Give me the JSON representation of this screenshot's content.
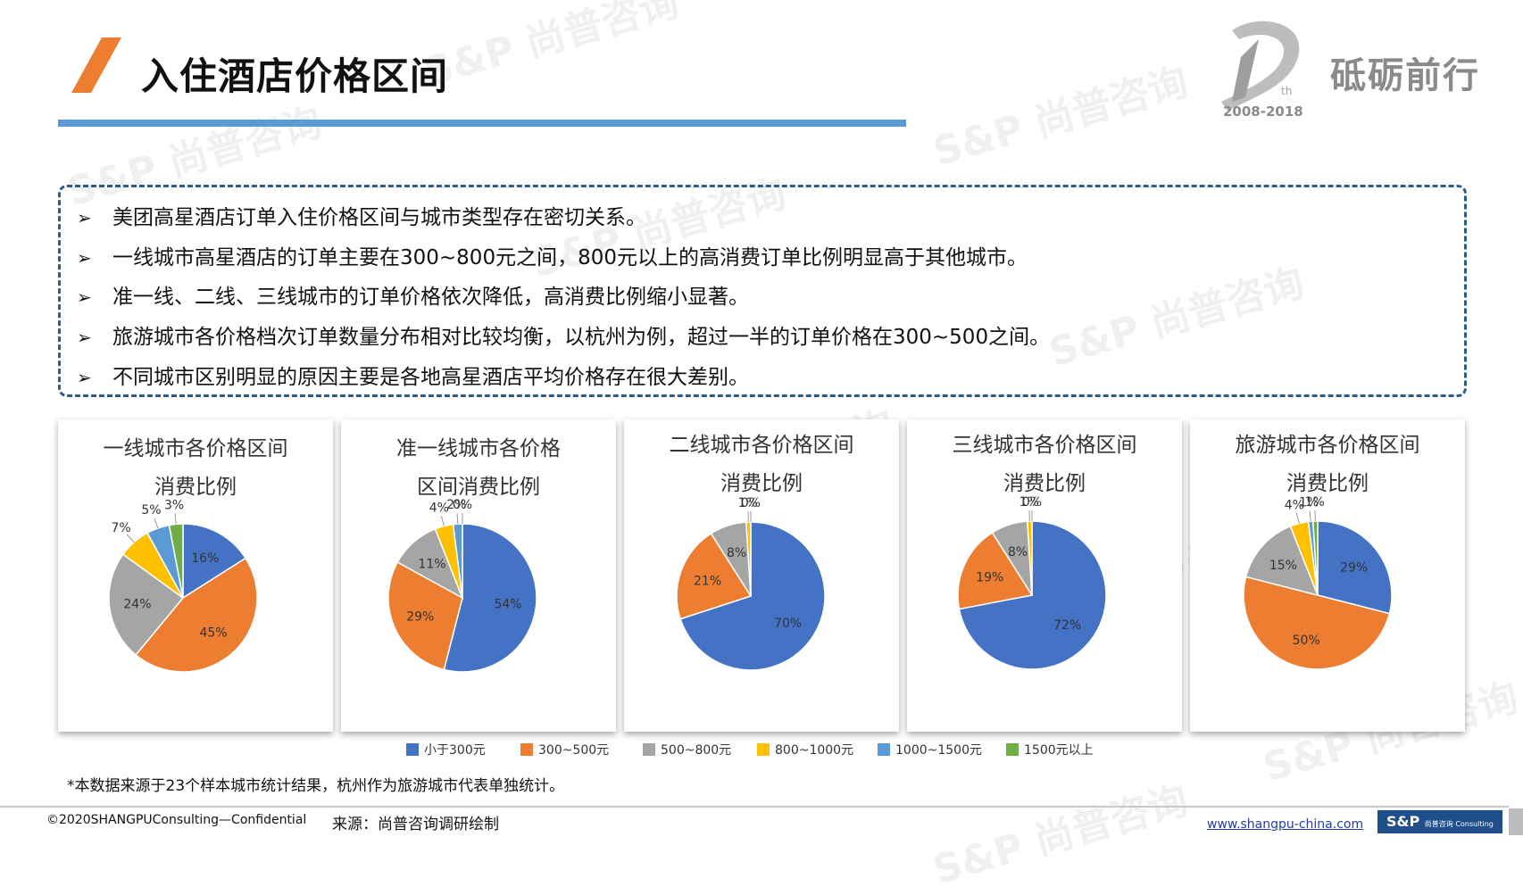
{
  "page": {
    "title": "入住酒店价格区间",
    "brand_text": "砥砺前行",
    "logo_years": "2008-2018",
    "logo_sup": "th"
  },
  "summary": {
    "bullets": [
      "美团高星酒店订单入住价格区间与城市类型存在密切关系。",
      "一线城市高星酒店的订单主要在300~800元之间，800元以上的高消费订单比例明显高于其他城市。",
      "准一线、二线、三线城市的订单价格依次降低，高消费比例缩小显著。",
      "旅游城市各价格档次订单数量分布相对比较均衡，以杭州为例，超过一半的订单价格在300~500之间。",
      "不同城市区别明显的原因主要是各地高星酒店平均价格存在很大差别。"
    ]
  },
  "chart_data": [
    {
      "type": "pie",
      "title_line1": "一线城市各价格区间",
      "title_line2": "消费比例",
      "categories": [
        "小于300元",
        "300~500元",
        "500~800元",
        "800~1000元",
        "1000~1500元",
        "1500元以上"
      ],
      "values": [
        16,
        45,
        24,
        7,
        5,
        3
      ],
      "labels": [
        "16%",
        "45%",
        "24%",
        "7%",
        "5%",
        "3%"
      ]
    },
    {
      "type": "pie",
      "title_line1": "准一线城市各价格",
      "title_line2": "区间消费比例",
      "categories": [
        "小于300元",
        "300~500元",
        "500~800元",
        "800~1000元",
        "1000~1500元",
        "1500元以上"
      ],
      "values": [
        54,
        29,
        11,
        4,
        2,
        0
      ],
      "labels": [
        "54%",
        "29%",
        "11%",
        "4%",
        "2%",
        "0%"
      ]
    },
    {
      "type": "pie",
      "title_line1": "二线城市各价格区间",
      "title_line2": "消费比例",
      "categories": [
        "小于300元",
        "300~500元",
        "500~800元",
        "800~1000元",
        "1000~1500元",
        "1500元以上"
      ],
      "values": [
        70,
        21,
        8,
        1,
        0,
        0
      ],
      "labels": [
        "70%",
        "21%",
        "8%",
        "1%",
        "0%",
        ""
      ]
    },
    {
      "type": "pie",
      "title_line1": "三线城市各价格区间",
      "title_line2": "消费比例",
      "categories": [
        "小于300元",
        "300~500元",
        "500~800元",
        "800~1000元",
        "1000~1500元",
        "1500元以上"
      ],
      "values": [
        72,
        19,
        8,
        1,
        0,
        0
      ],
      "labels": [
        "72%",
        "19%",
        "8%",
        "1%",
        "0%",
        ""
      ]
    },
    {
      "type": "pie",
      "title_line1": "旅游城市各价格区间",
      "title_line2": "消费比例",
      "categories": [
        "小于300元",
        "300~500元",
        "500~800元",
        "800~1000元",
        "1000~1500元",
        "1500元以上"
      ],
      "values": [
        29,
        50,
        15,
        4,
        1,
        1
      ],
      "labels": [
        "29%",
        "50%",
        "15%",
        "4%",
        "1%",
        "1%"
      ]
    }
  ],
  "legend": {
    "items": [
      {
        "label": "小于300元",
        "color": "#4472c4"
      },
      {
        "label": "300~500元",
        "color": "#ed7d31"
      },
      {
        "label": "500~800元",
        "color": "#a5a5a5"
      },
      {
        "label": "800~1000元",
        "color": "#ffc000"
      },
      {
        "label": "1000~1500元",
        "color": "#5b9bd5"
      },
      {
        "label": "1500元以上",
        "color": "#70ad47"
      }
    ]
  },
  "footer": {
    "note": "*本数据来源于23个样本城市统计结果，杭州作为旅游城市代表单独统计。",
    "copyright": "©2020SHANGPUConsulting—Confidential",
    "source": "来源：尚普咨询调研绘制",
    "url": "www.shangpu-china.com",
    "badge": "S&P",
    "badge_small": "尚普咨询 Consulting"
  },
  "watermark": "S&P 尚普咨询",
  "colors": {
    "accent_orange": "#ed7d31",
    "rule_blue": "#5b9bd5",
    "dash_border": "#2e5c8a"
  }
}
